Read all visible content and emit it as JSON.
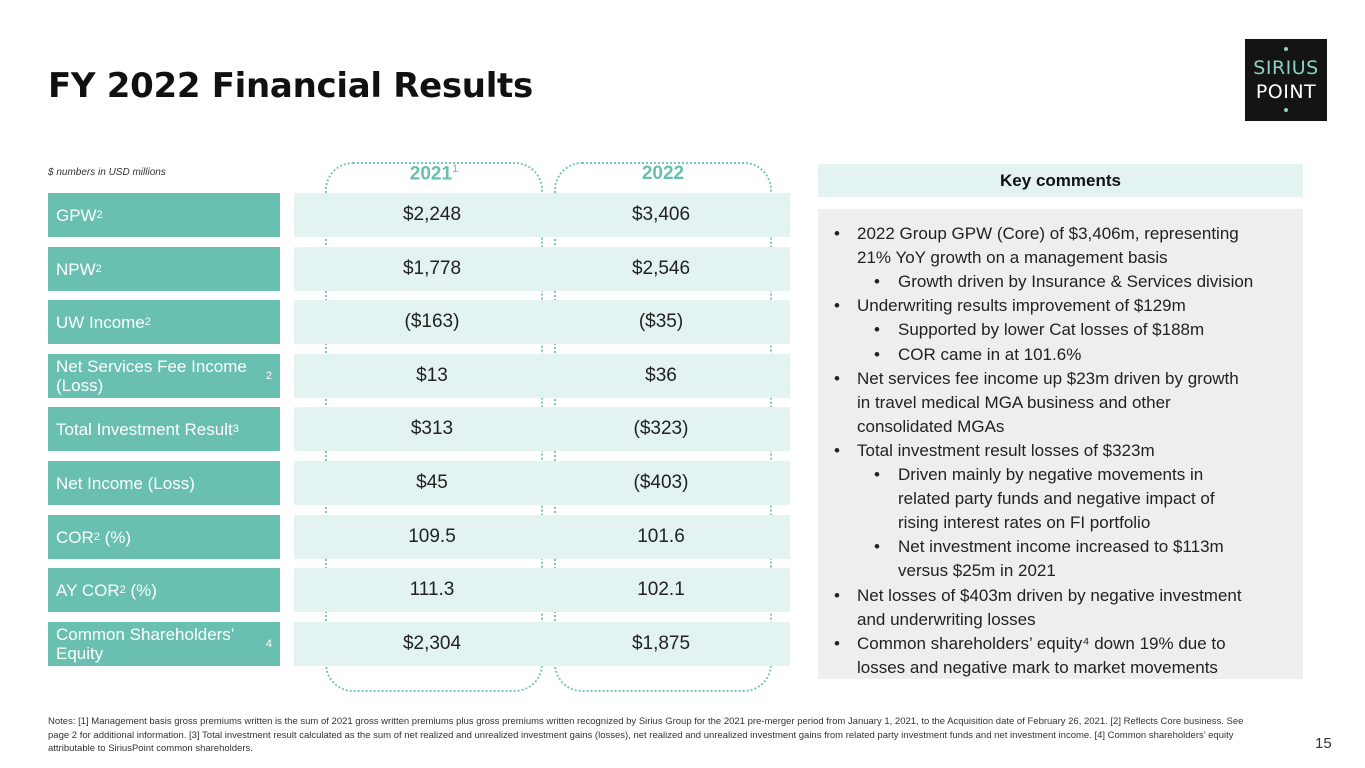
{
  "title": "FY 2022 Financial Results",
  "logo": {
    "line1": "SIRIUS",
    "line2": "POINT"
  },
  "units_note": "$ numbers in USD millions",
  "columns": [
    {
      "label": "2021",
      "sup": "1"
    },
    {
      "label": "2022",
      "sup": ""
    }
  ],
  "rows": [
    {
      "label": "GPW",
      "sup": "2",
      "v2021": "$2,248",
      "v2022": "$3,406"
    },
    {
      "label": "NPW",
      "sup": "2",
      "v2021": "$1,778",
      "v2022": "$2,546"
    },
    {
      "label": "UW Income",
      "sup": "2",
      "v2021": "($163)",
      "v2022": "($35)"
    },
    {
      "label": "Net Services Fee Income (Loss)",
      "sup": "2",
      "v2021": "$13",
      "v2022": "$36"
    },
    {
      "label": "Total Investment Result",
      "sup": "3",
      "v2021": "$313",
      "v2022": "($323)"
    },
    {
      "label": "Net Income (Loss)",
      "sup": "",
      "v2021": "$45",
      "v2022": "($403)"
    },
    {
      "label": "COR",
      "sup": "2",
      "suffix": " (%)",
      "v2021": "109.5",
      "v2022": "101.6"
    },
    {
      "label": "AY COR",
      "sup": "2",
      "suffix": " (%)",
      "v2021": "111.3",
      "v2022": "102.1"
    },
    {
      "label": "Common Shareholders’ Equity",
      "sup": "4",
      "v2021": "$2,304",
      "v2022": "$1,875"
    }
  ],
  "key_comments": {
    "heading": "Key comments",
    "lines": [
      {
        "level": 1,
        "bullet": "•",
        "text": "2022 Group GPW (Core) of $3,406m, representing"
      },
      {
        "level": 1,
        "bullet": "",
        "text": "21% YoY growth on a management basis"
      },
      {
        "level": 2,
        "bullet": "•",
        "text": "Growth driven by Insurance & Services division"
      },
      {
        "level": 1,
        "bullet": "•",
        "text": "Underwriting results improvement of $129m"
      },
      {
        "level": 2,
        "bullet": "•",
        "text": "Supported by lower Cat losses of $188m"
      },
      {
        "level": 2,
        "bullet": "•",
        "text": "COR came in at 101.6%"
      },
      {
        "level": 1,
        "bullet": "•",
        "text": "Net services fee income up $23m driven by growth"
      },
      {
        "level": 1,
        "bullet": "",
        "text": "in travel medical MGA business and other"
      },
      {
        "level": 1,
        "bullet": "",
        "text": "consolidated MGAs"
      },
      {
        "level": 1,
        "bullet": "•",
        "text": "Total investment result losses of $323m"
      },
      {
        "level": 2,
        "bullet": "•",
        "text": "Driven mainly by negative movements in"
      },
      {
        "level": 2,
        "bullet": "",
        "text": "related party funds and negative impact of"
      },
      {
        "level": 2,
        "bullet": "",
        "text": "rising interest rates on FI portfolio"
      },
      {
        "level": 2,
        "bullet": "•",
        "text": "Net investment income increased to $113m"
      },
      {
        "level": 2,
        "bullet": "",
        "text": "versus $25m in 2021"
      },
      {
        "level": 1,
        "bullet": "•",
        "text": "Net losses of $403m driven by negative investment"
      },
      {
        "level": 1,
        "bullet": "",
        "text": "and underwriting losses"
      },
      {
        "level": 1,
        "bullet": "•",
        "text": "Common shareholders’ equity⁴ down 19% due to"
      },
      {
        "level": 1,
        "bullet": "",
        "text": "losses and negative mark to market movements"
      }
    ]
  },
  "notes": "Notes: [1] Management basis gross premiums written is the sum of 2021 gross written premiums plus gross premiums written recognized by Sirius Group for the 2021 pre-merger period from January 1, 2021, to the Acquisition date of February 26, 2021. [2] Reflects Core business. See page 2 for additional information. [3] Total investment result calculated as the sum of net realized and unrealized investment gains (losses), net realized and unrealized investment gains from related party investment funds and net investment income. [4] Common shareholders’ equity attributable to SiriusPoint common shareholders.",
  "page_number": "15"
}
